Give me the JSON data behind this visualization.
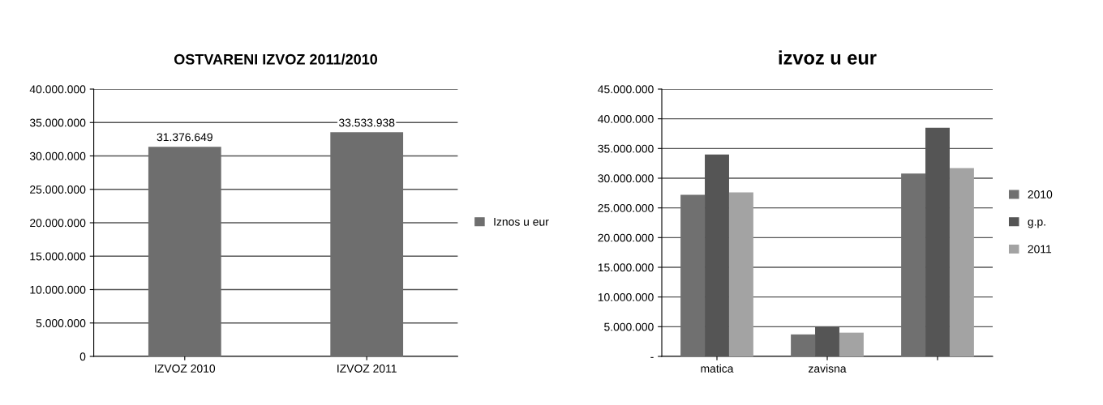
{
  "chart_data": [
    {
      "type": "bar",
      "title": "OSTVARENI IZVOZ 2011/2010",
      "categories": [
        "IZVOZ 2010",
        "IZVOZ 2011"
      ],
      "series": [
        {
          "name": "Iznos u eur",
          "color": "#6e6e6e",
          "values": [
            31376649,
            33533938
          ],
          "value_labels": [
            "31.376.649",
            "33.533.938"
          ]
        }
      ],
      "ylim": [
        0,
        40000000
      ],
      "yticks": [
        0,
        {
          "value": 5000000,
          "label": "5.000.000"
        },
        {
          "value": 10000000,
          "label": "10.000.000"
        },
        {
          "value": 15000000,
          "label": "15.000.000"
        },
        {
          "value": 20000000,
          "label": "20.000.000"
        },
        {
          "value": 25000000,
          "label": "25.000.000"
        },
        {
          "value": 30000000,
          "label": "30.000.000"
        },
        {
          "value": 35000000,
          "label": "35.000.000"
        },
        {
          "value": 40000000,
          "label": "40.000.000"
        }
      ],
      "grid": "y",
      "legend": "right"
    },
    {
      "type": "bar",
      "title": "izvoz u eur",
      "categories": [
        "matica",
        "zavisna",
        null
      ],
      "series": [
        {
          "name": "2010",
          "color": "#707070",
          "values": [
            27200000,
            3700000,
            30800000
          ]
        },
        {
          "name": "g.p.",
          "color": "#555555",
          "values": [
            34000000,
            4900000,
            38500000
          ]
        },
        {
          "name": "2011",
          "color": "#a3a3a3",
          "values": [
            27600000,
            4000000,
            31700000
          ]
        }
      ],
      "ylim": [
        0,
        45000000
      ],
      "yticks": [
        {
          "value": 0,
          "label": "-"
        },
        {
          "value": 5000000,
          "label": "5.000.000"
        },
        {
          "value": 10000000,
          "label": "10.000.000"
        },
        {
          "value": 15000000,
          "label": "15.000.000"
        },
        {
          "value": 20000000,
          "label": "20.000.000"
        },
        {
          "value": 25000000,
          "label": "25.000.000"
        },
        {
          "value": 30000000,
          "label": "30.000.000"
        },
        {
          "value": 35000000,
          "label": "35.000.000"
        },
        {
          "value": 40000000,
          "label": "40.000.000"
        },
        {
          "value": 45000000,
          "label": "45.000.000"
        }
      ],
      "grid": "y",
      "legend": "right"
    }
  ]
}
